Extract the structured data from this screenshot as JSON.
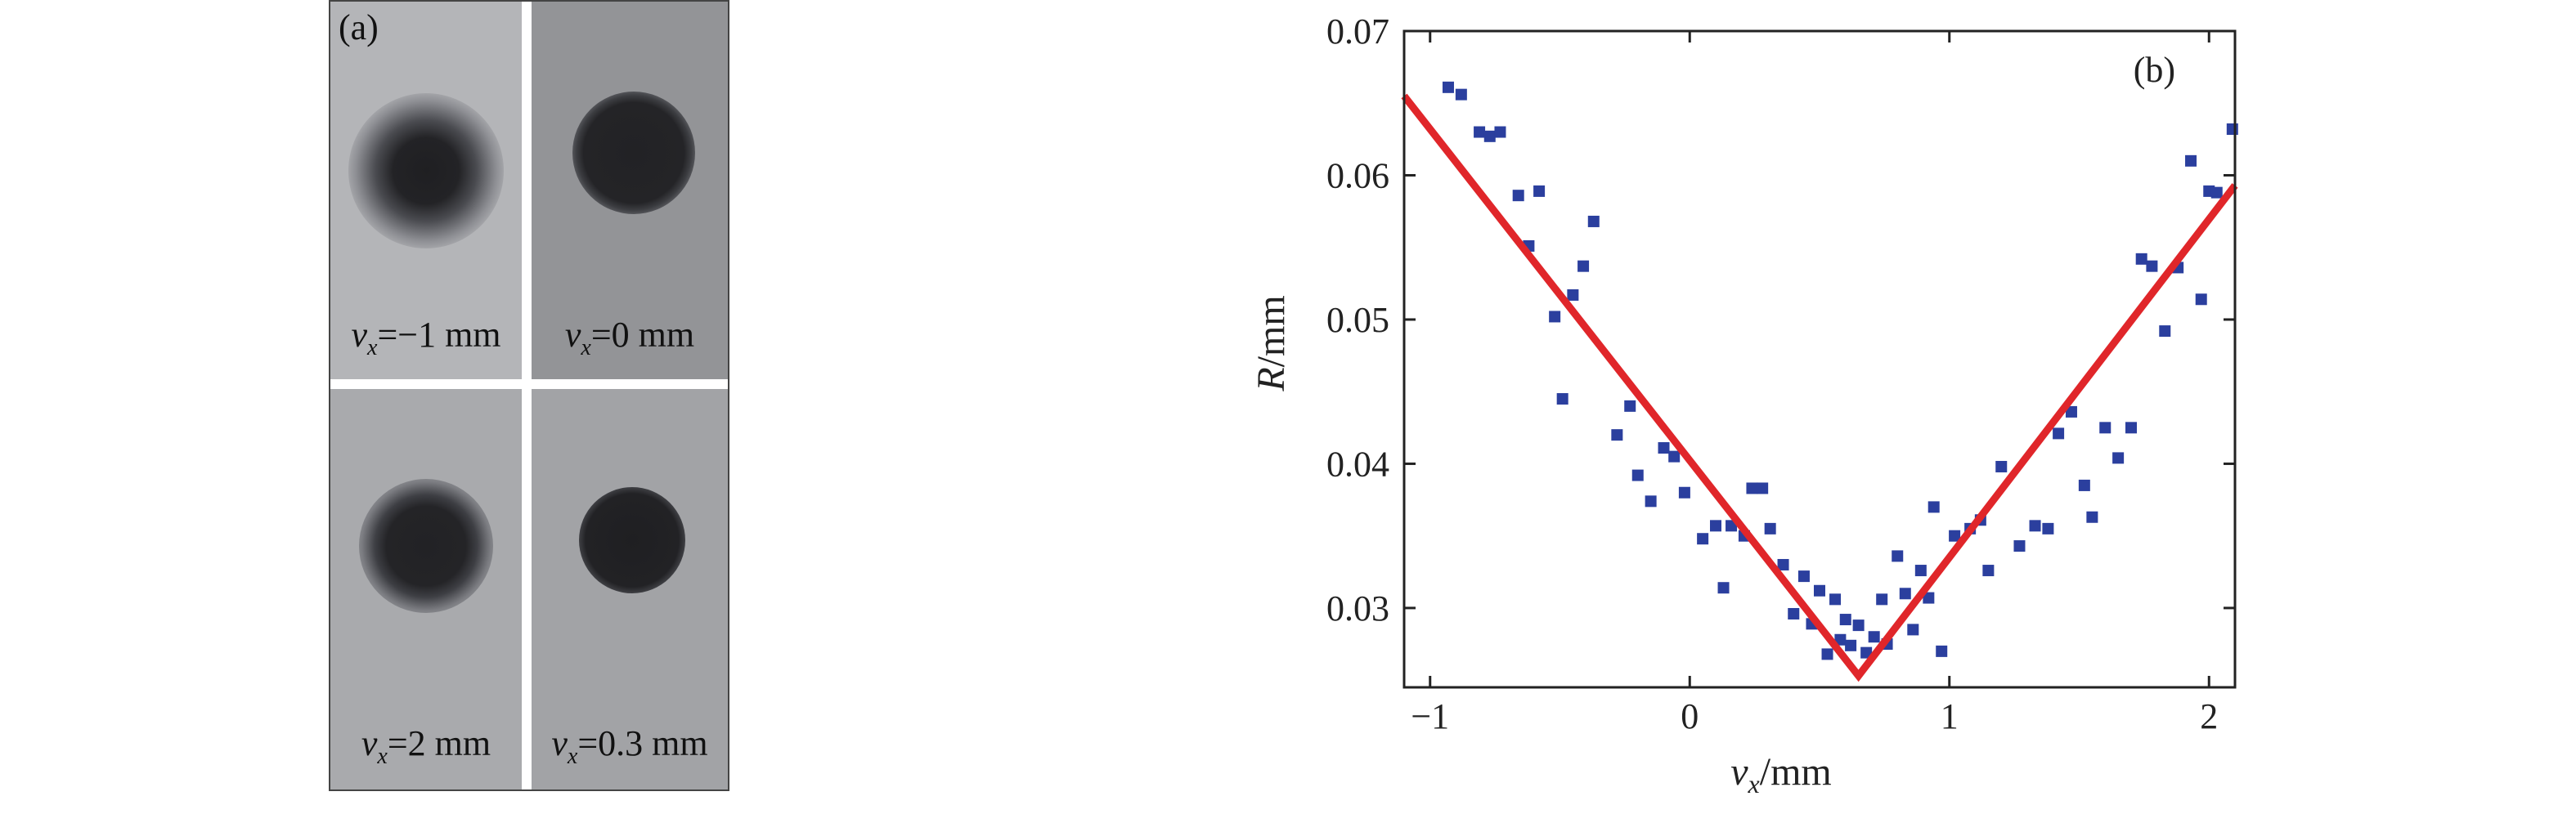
{
  "panel_a": {
    "label": "(a)",
    "tiles": [
      {
        "var": "v",
        "sub": "x",
        "value": "=−1 mm"
      },
      {
        "var": "v",
        "sub": "x",
        "value": "=0 mm"
      },
      {
        "var": "v",
        "sub": "x",
        "value": "=2 mm"
      },
      {
        "var": "v",
        "sub": "x",
        "value": "=0.3 mm"
      }
    ]
  },
  "chart_data": {
    "type": "scatter",
    "panel_label": "(b)",
    "xlabel_var": "v",
    "xlabel_sub": "x",
    "xlabel_unit": "/mm",
    "ylabel_var": "R",
    "ylabel_unit": "/mm",
    "xlim": [
      -1.1,
      2.1
    ],
    "ylim": [
      0.0245,
      0.07
    ],
    "xticks": [
      -1,
      0,
      1,
      2
    ],
    "yticks": [
      0.03,
      0.04,
      0.05,
      0.06,
      0.07
    ],
    "xtick_labels": [
      "−1",
      "0",
      "1",
      "2"
    ],
    "ytick_labels": [
      "0.03",
      "0.04",
      "0.05",
      "0.06",
      "0.07"
    ],
    "grid": false,
    "legend": "none",
    "colors": {
      "points": "#2b3f9e",
      "fit": "#e0262a"
    },
    "series": [
      {
        "type": "scatter",
        "points": [
          [
            -0.93,
            0.0661
          ],
          [
            -0.88,
            0.0656
          ],
          [
            -0.81,
            0.063
          ],
          [
            -0.77,
            0.0627
          ],
          [
            -0.73,
            0.063
          ],
          [
            -0.66,
            0.0586
          ],
          [
            -0.62,
            0.0551
          ],
          [
            -0.58,
            0.0589
          ],
          [
            -0.52,
            0.0502
          ],
          [
            -0.49,
            0.0445
          ],
          [
            -0.45,
            0.0517
          ],
          [
            -0.41,
            0.0537
          ],
          [
            -0.37,
            0.0568
          ],
          [
            -0.28,
            0.042
          ],
          [
            -0.23,
            0.044
          ],
          [
            -0.2,
            0.0392
          ],
          [
            -0.15,
            0.0374
          ],
          [
            -0.1,
            0.0411
          ],
          [
            -0.06,
            0.0405
          ],
          [
            -0.02,
            0.038
          ],
          [
            0.05,
            0.0348
          ],
          [
            0.1,
            0.0357
          ],
          [
            0.13,
            0.0314
          ],
          [
            0.16,
            0.0357
          ],
          [
            0.21,
            0.035
          ],
          [
            0.24,
            0.0383
          ],
          [
            0.28,
            0.0383
          ],
          [
            0.31,
            0.0355
          ],
          [
            0.36,
            0.033
          ],
          [
            0.4,
            0.0296
          ],
          [
            0.44,
            0.0322
          ],
          [
            0.47,
            0.0289
          ],
          [
            0.5,
            0.0312
          ],
          [
            0.53,
            0.0268
          ],
          [
            0.56,
            0.0306
          ],
          [
            0.58,
            0.0278
          ],
          [
            0.6,
            0.0292
          ],
          [
            0.62,
            0.0274
          ],
          [
            0.65,
            0.0288
          ],
          [
            0.68,
            0.0269
          ],
          [
            0.71,
            0.028
          ],
          [
            0.74,
            0.0306
          ],
          [
            0.76,
            0.0275
          ],
          [
            0.8,
            0.0336
          ],
          [
            0.83,
            0.031
          ],
          [
            0.86,
            0.0285
          ],
          [
            0.89,
            0.0326
          ],
          [
            0.92,
            0.0307
          ],
          [
            0.94,
            0.037
          ],
          [
            0.97,
            0.027
          ],
          [
            1.02,
            0.035
          ],
          [
            1.08,
            0.0355
          ],
          [
            1.12,
            0.0361
          ],
          [
            1.15,
            0.0326
          ],
          [
            1.2,
            0.0398
          ],
          [
            1.27,
            0.0343
          ],
          [
            1.33,
            0.0357
          ],
          [
            1.38,
            0.0355
          ],
          [
            1.42,
            0.0421
          ],
          [
            1.47,
            0.0436
          ],
          [
            1.52,
            0.0385
          ],
          [
            1.55,
            0.0363
          ],
          [
            1.6,
            0.0425
          ],
          [
            1.65,
            0.0404
          ],
          [
            1.7,
            0.0425
          ],
          [
            1.74,
            0.0542
          ],
          [
            1.78,
            0.0537
          ],
          [
            1.83,
            0.0492
          ],
          [
            1.88,
            0.0536
          ],
          [
            1.93,
            0.061
          ],
          [
            1.97,
            0.0514
          ],
          [
            2.0,
            0.0589
          ],
          [
            2.03,
            0.0588
          ],
          [
            2.09,
            0.0632
          ]
        ]
      },
      {
        "type": "line",
        "points": [
          [
            -1.1,
            0.0655
          ],
          [
            0.65,
            0.0253
          ],
          [
            2.1,
            0.0593
          ]
        ]
      }
    ]
  }
}
